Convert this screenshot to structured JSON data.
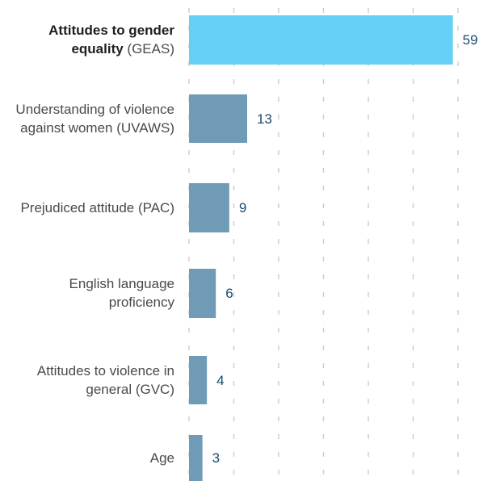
{
  "chart_data": {
    "type": "bar",
    "orientation": "horizontal",
    "categories": [
      {
        "bold": "Attitudes to gender equality",
        "rest": " (GEAS)"
      },
      {
        "bold": "",
        "rest": "Understanding of violence against women (UVAWS)"
      },
      {
        "bold": "",
        "rest": "Prejudiced attitude (PAC)"
      },
      {
        "bold": "",
        "rest": "English language proficiency"
      },
      {
        "bold": "",
        "rest": "Attitudes to violence in general (GVC)"
      },
      {
        "bold": "",
        "rest": "Age"
      }
    ],
    "values": [
      59,
      13,
      9,
      6,
      4,
      3
    ],
    "xlim": [
      0,
      69
    ],
    "grid": true,
    "grid_style": "dashed vertical",
    "colors": {
      "highlight": "#66cff5",
      "default": "#6f9bb7",
      "value_text": "#1c4a6e",
      "grid": "#cfcfcf"
    },
    "highlight_index": 0
  }
}
